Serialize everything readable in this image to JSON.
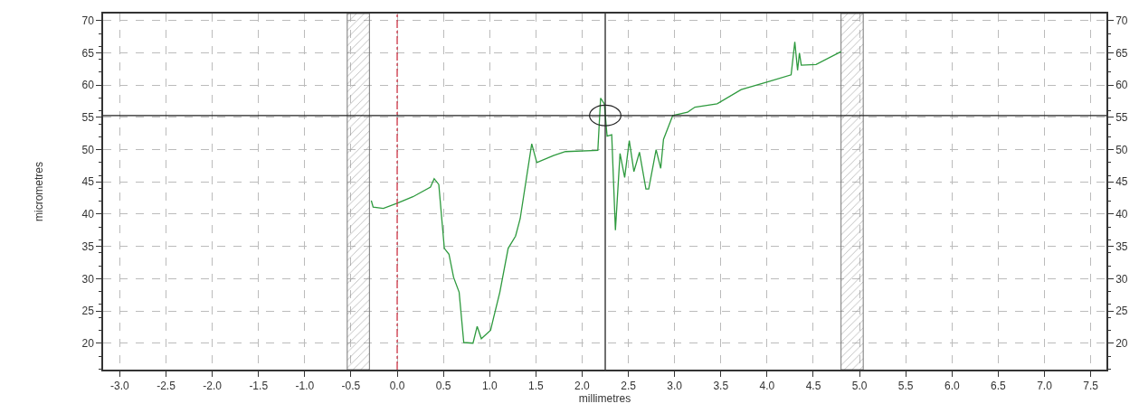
{
  "chart_data": {
    "type": "line",
    "xlabel": "millimetres",
    "ylabel": "micrometres",
    "series": [
      {
        "color": "#2e9a3e",
        "x": [
          -0.28,
          -0.26,
          -0.15,
          0,
          0.17,
          0.36,
          0.4,
          0.45,
          0.51,
          0.56,
          0.61,
          0.67,
          0.72,
          0.82,
          0.865,
          0.91,
          1.01,
          1.04,
          1.11,
          1.2,
          1.28,
          1.33,
          1.455,
          1.51,
          1.69,
          1.82,
          2.17,
          2.2,
          2.24,
          2.27,
          2.32,
          2.36,
          2.41,
          2.46,
          2.51,
          2.56,
          2.62,
          2.69,
          2.72,
          2.8,
          2.85,
          2.88,
          2.98,
          3.14,
          3.22,
          3.46,
          3.72,
          4.03,
          4.26,
          4.3,
          4.33,
          4.35,
          4.37,
          4.53,
          4.8
        ],
        "values": [
          42.1,
          41.1,
          40.9,
          41.7,
          42.7,
          44.2,
          45.5,
          44.6,
          34.7,
          33.8,
          30.2,
          27.9,
          20.1,
          20.0,
          22.6,
          20.7,
          22.0,
          23.8,
          27.9,
          34.7,
          36.6,
          39.3,
          50.9,
          48.0,
          49.1,
          49.7,
          49.9,
          58.0,
          57.1,
          52.1,
          52.3,
          37.5,
          49.4,
          45.7,
          51.4,
          46.6,
          49.6,
          43.9,
          43.9,
          50.0,
          47.1,
          51.6,
          55.3,
          55.8,
          56.6,
          57.1,
          59.3,
          60.6,
          61.6,
          66.7,
          62.3,
          65.0,
          63.1,
          63.2,
          65.2
        ]
      }
    ],
    "xlim": [
      -3.18,
      7.67
    ],
    "ylim": [
      15.9,
      71.1
    ],
    "y2lim": [
      15.9,
      71.1
    ],
    "xticks": [
      {
        "value": -3,
        "label": "-3.0"
      },
      -2.5,
      {
        "value": -2,
        "label": "-2.0"
      },
      -1.5,
      {
        "value": -1,
        "label": "-1.0"
      },
      -0.5,
      {
        "value": 0,
        "label": "0.0"
      },
      0.5,
      {
        "value": 1,
        "label": "1.0"
      },
      1.5,
      {
        "value": 2,
        "label": "2.0"
      },
      2.5,
      {
        "value": 3,
        "label": "3.0"
      },
      3.5,
      {
        "value": 4,
        "label": "4.0"
      },
      4.5,
      {
        "value": 5,
        "label": "5.0"
      },
      5.5,
      {
        "value": 6,
        "label": "6.0"
      },
      6.5,
      {
        "value": 7,
        "label": "7.0"
      },
      7.5
    ],
    "yticks": [
      20,
      25,
      30,
      35,
      40,
      45,
      50,
      55,
      60,
      65,
      70
    ],
    "y2ticks": [
      20,
      25,
      30,
      35,
      40,
      45,
      50,
      55,
      60,
      65,
      70
    ],
    "grid": true,
    "marker": "none",
    "line_style": "solid",
    "ref_lines": [
      {
        "axis": "x",
        "value": 0,
        "color": "#cc3344",
        "line_style": "dashdot"
      },
      {
        "axis": "x",
        "value": 2.25,
        "color": "#222222",
        "line_style": "solid"
      },
      {
        "axis": "y",
        "value": 55.3,
        "color": "#222222",
        "line_style": "solid"
      }
    ],
    "bands": [
      {
        "axis": "x",
        "from": -0.54,
        "to": -0.3,
        "color": "#777777"
      },
      {
        "axis": "x",
        "from": 4.8,
        "to": 5.04,
        "color": "#777777"
      }
    ]
  }
}
